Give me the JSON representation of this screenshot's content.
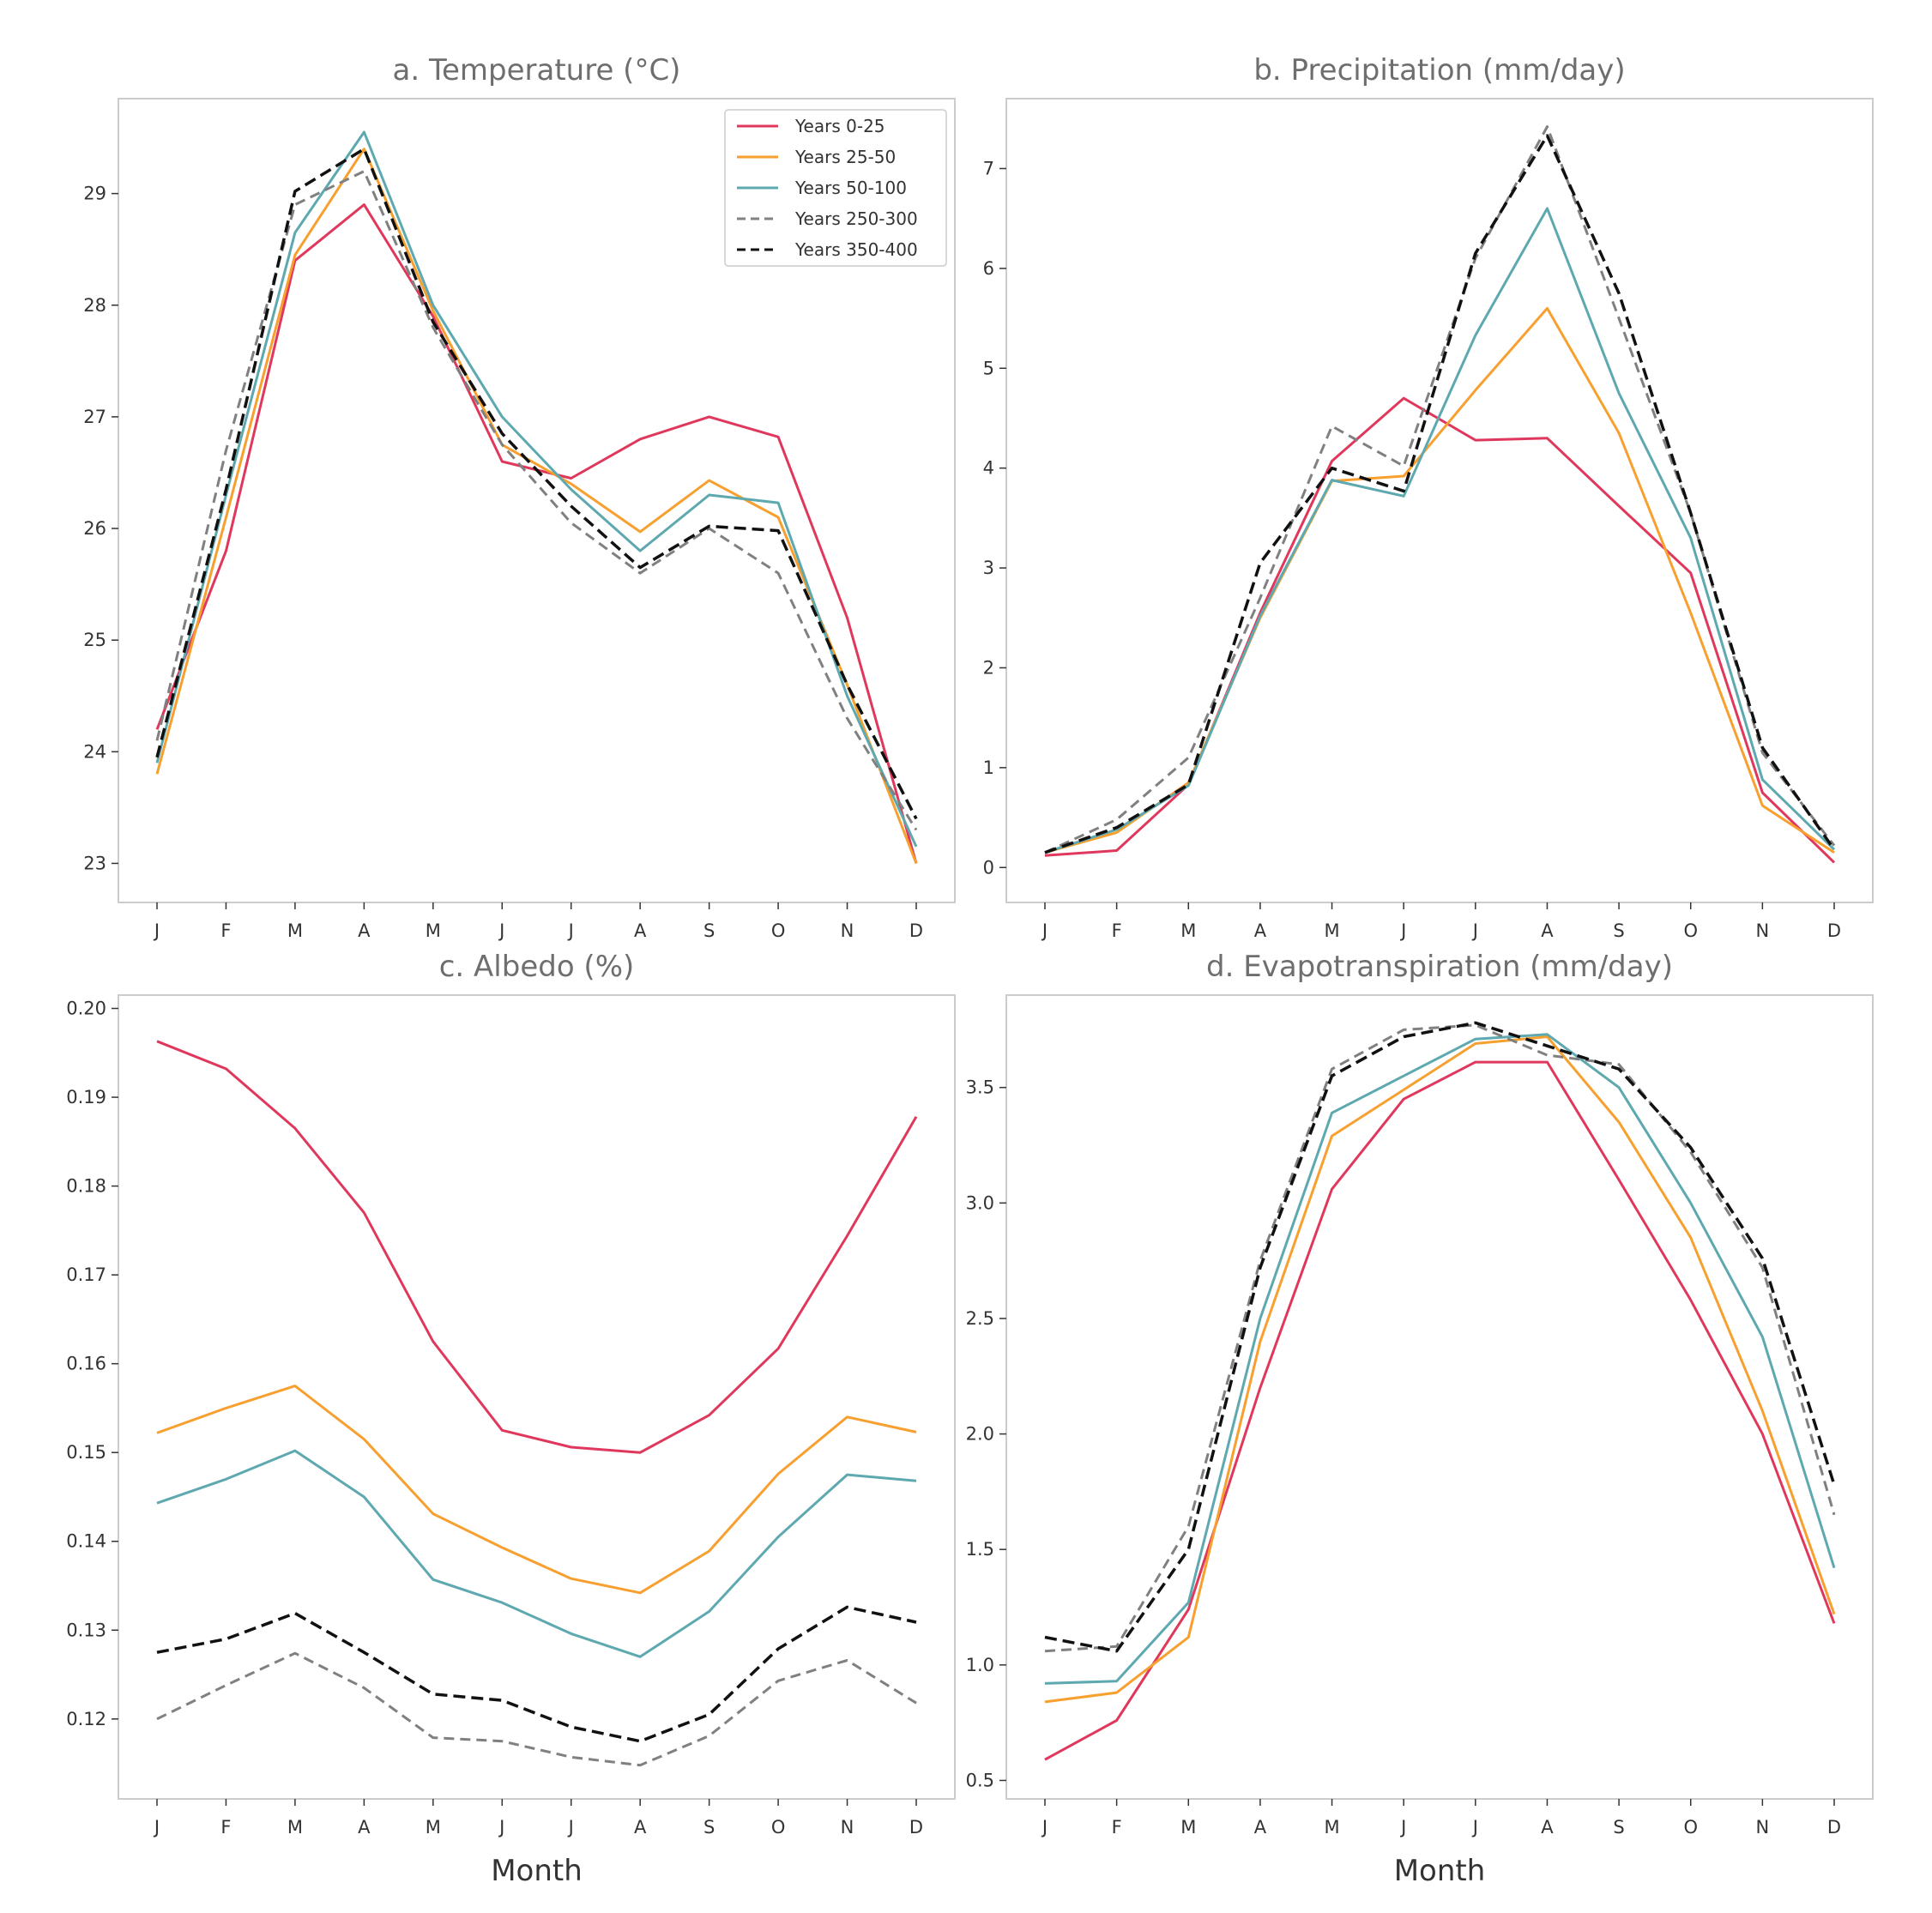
{
  "chart_data": [
    {
      "type": "line",
      "title": "a. Temperature (°C)",
      "xlabel": "",
      "ylabel": "",
      "categories": [
        "J",
        "F",
        "M",
        "A",
        "M",
        "J",
        "J",
        "A",
        "S",
        "O",
        "N",
        "D"
      ],
      "yticks": [
        "23",
        "24",
        "25",
        "26",
        "27",
        "28",
        "29"
      ],
      "ylim": [
        22.65,
        29.85
      ],
      "series": [
        {
          "name": "Years 0-25",
          "values": [
            24.2,
            25.8,
            28.4,
            28.9,
            27.9,
            26.6,
            26.45,
            26.8,
            27.0,
            26.82,
            25.2,
            23.0
          ]
        },
        {
          "name": "Years 25-50",
          "values": [
            23.8,
            26.1,
            28.45,
            29.4,
            27.95,
            26.75,
            26.4,
            25.97,
            26.43,
            26.1,
            24.6,
            23.0
          ]
        },
        {
          "name": "Years 50-100",
          "values": [
            23.9,
            26.3,
            28.65,
            29.55,
            28.0,
            27.0,
            26.35,
            25.8,
            26.3,
            26.23,
            24.5,
            23.15
          ]
        },
        {
          "name": "Years 250-300",
          "values": [
            24.1,
            26.7,
            28.9,
            29.2,
            27.8,
            26.75,
            26.05,
            25.6,
            26.0,
            25.6,
            24.3,
            23.3
          ]
        },
        {
          "name": "Years 350-400",
          "values": [
            23.95,
            26.35,
            29.02,
            29.4,
            27.85,
            26.85,
            26.2,
            25.65,
            26.02,
            25.98,
            24.6,
            23.4
          ]
        }
      ],
      "legend": {
        "position": "top-right",
        "entries": [
          "Years 0-25",
          "Years 25-50",
          "Years 50-100",
          "Years 250-300",
          "Years 350-400"
        ]
      }
    },
    {
      "type": "line",
      "title": "b. Precipitation (mm/day)",
      "xlabel": "",
      "ylabel": "",
      "categories": [
        "J",
        "F",
        "M",
        "A",
        "M",
        "J",
        "J",
        "A",
        "S",
        "O",
        "N",
        "D"
      ],
      "yticks": [
        "0",
        "1",
        "2",
        "3",
        "4",
        "5",
        "6",
        "7"
      ],
      "ylim": [
        -0.35,
        7.7
      ],
      "series": [
        {
          "name": "Years 0-25",
          "values": [
            0.12,
            0.17,
            0.83,
            2.55,
            4.07,
            4.7,
            4.28,
            4.3,
            3.62,
            2.95,
            0.75,
            0.05
          ]
        },
        {
          "name": "Years 25-50",
          "values": [
            0.15,
            0.35,
            0.85,
            2.5,
            3.87,
            3.92,
            4.78,
            5.6,
            4.35,
            2.55,
            0.62,
            0.15
          ]
        },
        {
          "name": "Years 50-100",
          "values": [
            0.15,
            0.38,
            0.82,
            2.52,
            3.88,
            3.72,
            5.33,
            6.6,
            4.75,
            3.3,
            0.88,
            0.18
          ]
        },
        {
          "name": "Years 250-300",
          "values": [
            0.15,
            0.48,
            1.1,
            2.7,
            4.42,
            4.02,
            6.1,
            7.42,
            5.5,
            3.55,
            1.15,
            0.22
          ]
        },
        {
          "name": "Years 350-400",
          "values": [
            0.15,
            0.4,
            0.83,
            3.05,
            4.0,
            3.77,
            6.15,
            7.33,
            5.75,
            3.55,
            1.2,
            0.18
          ]
        }
      ]
    },
    {
      "type": "line",
      "title": "c. Albedo (%)",
      "xlabel": "Month",
      "ylabel": "",
      "categories": [
        "J",
        "F",
        "M",
        "A",
        "M",
        "J",
        "J",
        "A",
        "S",
        "O",
        "N",
        "D"
      ],
      "yticks": [
        "0.12",
        "0.13",
        "0.14",
        "0.15",
        "0.16",
        "0.17",
        "0.18",
        "0.19",
        "0.20"
      ],
      "ylim": [
        0.111,
        0.2015
      ],
      "series": [
        {
          "name": "Years 0-25",
          "values": [
            0.1963,
            0.1932,
            0.1865,
            0.177,
            0.1625,
            0.1525,
            0.1506,
            0.15,
            0.1542,
            0.1617,
            0.1744,
            0.1878
          ]
        },
        {
          "name": "Years 25-50",
          "values": [
            0.1522,
            0.155,
            0.1575,
            0.1515,
            0.1431,
            0.1393,
            0.1358,
            0.1342,
            0.1389,
            0.1476,
            0.154,
            0.1523
          ]
        },
        {
          "name": "Years 50-100",
          "values": [
            0.1443,
            0.147,
            0.1502,
            0.145,
            0.1357,
            0.1331,
            0.1296,
            0.127,
            0.1321,
            0.1405,
            0.1475,
            0.1468
          ]
        },
        {
          "name": "Years 250-300",
          "values": [
            0.12,
            0.1238,
            0.1274,
            0.1235,
            0.1179,
            0.1175,
            0.1157,
            0.1148,
            0.1181,
            0.1243,
            0.1266,
            0.1218
          ]
        },
        {
          "name": "Years 350-400",
          "values": [
            0.1275,
            0.129,
            0.1319,
            0.1275,
            0.1228,
            0.1221,
            0.1191,
            0.1175,
            0.1205,
            0.1279,
            0.1326,
            0.1309
          ]
        }
      ]
    },
    {
      "type": "line",
      "title": "d. Evapotranspiration (mm/day)",
      "xlabel": "Month",
      "ylabel": "",
      "categories": [
        "J",
        "F",
        "M",
        "A",
        "M",
        "J",
        "J",
        "A",
        "S",
        "O",
        "N",
        "D"
      ],
      "yticks": [
        "0.5",
        "1.0",
        "1.5",
        "2.0",
        "2.5",
        "3.0",
        "3.5"
      ],
      "ylim": [
        0.42,
        3.9
      ],
      "series": [
        {
          "name": "Years 0-25",
          "values": [
            0.59,
            0.76,
            1.24,
            2.2,
            3.06,
            3.45,
            3.61,
            3.61,
            3.1,
            2.58,
            2.0,
            1.18
          ]
        },
        {
          "name": "Years 25-50",
          "values": [
            0.84,
            0.88,
            1.12,
            2.4,
            3.29,
            3.49,
            3.69,
            3.72,
            3.35,
            2.85,
            2.1,
            1.22
          ]
        },
        {
          "name": "Years 50-100",
          "values": [
            0.92,
            0.93,
            1.27,
            2.5,
            3.39,
            3.55,
            3.71,
            3.73,
            3.5,
            3.0,
            2.42,
            1.42
          ]
        },
        {
          "name": "Years 250-300",
          "values": [
            1.06,
            1.08,
            1.6,
            2.75,
            3.58,
            3.75,
            3.77,
            3.64,
            3.6,
            3.22,
            2.72,
            1.65
          ]
        },
        {
          "name": "Years 350-400",
          "values": [
            1.12,
            1.06,
            1.5,
            2.72,
            3.55,
            3.72,
            3.78,
            3.68,
            3.58,
            3.24,
            2.76,
            1.78
          ]
        }
      ]
    }
  ],
  "series_colors": [
    "#e0385c",
    "#f7a030",
    "#5ea8b0",
    "#808080",
    "#111111"
  ],
  "series_dashed": [
    false,
    false,
    false,
    true,
    true
  ],
  "axis_color": "#cccccc",
  "tick_color": "#333333"
}
